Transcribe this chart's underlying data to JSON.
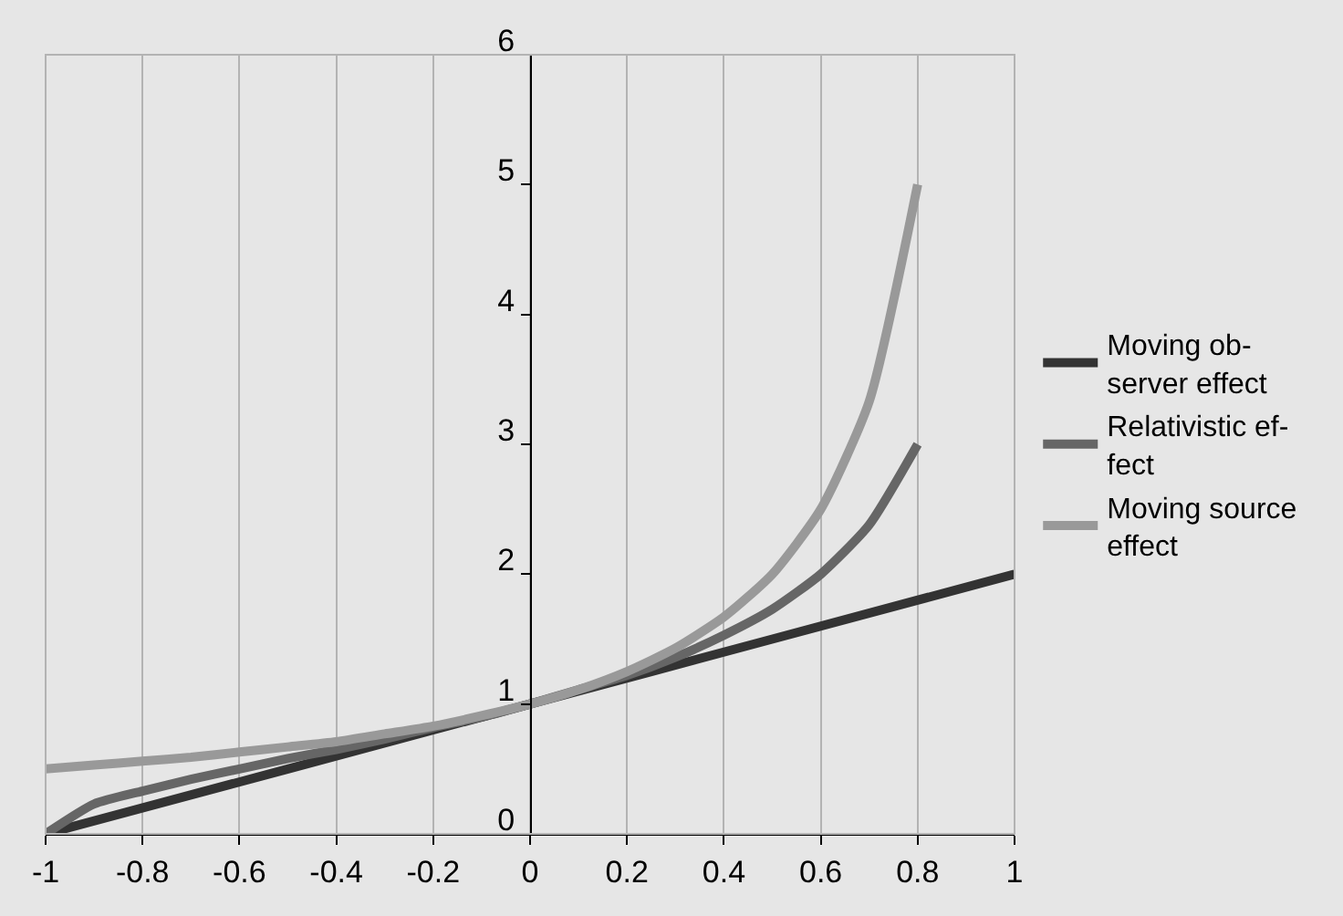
{
  "chart_data": {
    "type": "line",
    "xlim": [
      -1,
      1
    ],
    "xticks": [
      -1,
      -0.8,
      -0.6,
      -0.4,
      -0.2,
      0,
      0.2,
      0.4,
      0.6,
      0.8,
      1
    ],
    "ylim": [
      0,
      6
    ],
    "yticks": [
      0,
      1,
      2,
      3,
      4,
      5,
      6
    ],
    "grid": "x",
    "legend": "right",
    "marker": "none",
    "line_style": "solid",
    "series": [
      {
        "name": "Moving ob-\nserver effect",
        "color": "#333333",
        "x": [
          -1,
          -0.5,
          0,
          0.5,
          1
        ],
        "values": [
          0,
          0.5,
          1,
          1.5,
          2
        ]
      },
      {
        "name": "Relativistic ef-\nfect",
        "color": "#666666",
        "x": [
          -1,
          -0.9,
          -0.8,
          -0.7,
          -0.6,
          -0.5,
          -0.4,
          -0.3,
          -0.2,
          -0.1,
          0,
          0.1,
          0.2,
          0.3,
          0.4,
          0.5,
          0.6,
          0.7,
          0.8
        ],
        "values": [
          0,
          0.23,
          0.33,
          0.42,
          0.5,
          0.58,
          0.65,
          0.73,
          0.82,
          0.9,
          1,
          1.11,
          1.22,
          1.36,
          1.53,
          1.73,
          2,
          2.38,
          3
        ]
      },
      {
        "name": "Moving source\neffect",
        "color": "#999999",
        "x": [
          -1,
          -0.9,
          -0.8,
          -0.7,
          -0.6,
          -0.5,
          -0.4,
          -0.3,
          -0.2,
          -0.1,
          0,
          0.1,
          0.2,
          0.3,
          0.4,
          0.5,
          0.6,
          0.7,
          0.8
        ],
        "values": [
          0.5,
          0.53,
          0.56,
          0.59,
          0.63,
          0.67,
          0.71,
          0.77,
          0.83,
          0.91,
          1,
          1.11,
          1.25,
          1.43,
          1.67,
          2,
          2.5,
          3.33,
          5
        ]
      }
    ]
  }
}
